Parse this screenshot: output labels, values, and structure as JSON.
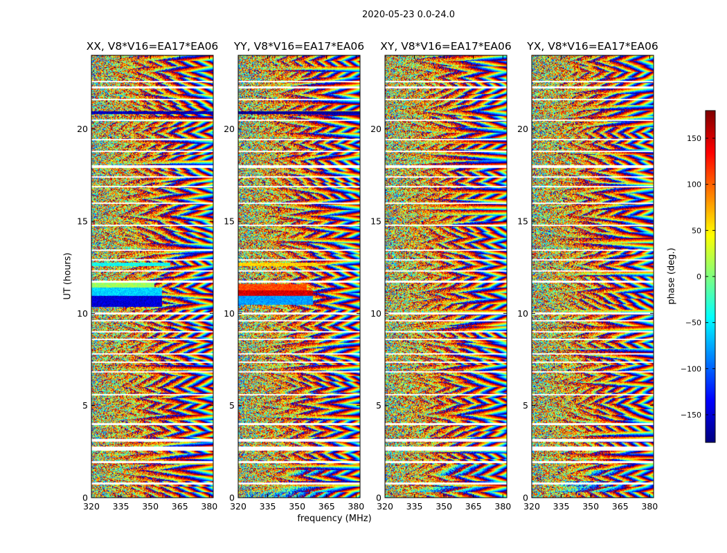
{
  "chart_data": [
    {
      "type": "heatmap",
      "title": "XX, V8*V16=EA17*EA06",
      "xlabel": "",
      "ylabel": "UT (hours)",
      "x_ticks": [
        "320",
        "335",
        "350",
        "365",
        "380"
      ],
      "y_ticks": [
        "0",
        "5",
        "10",
        "15",
        "20"
      ],
      "xlim": [
        320,
        382
      ],
      "ylim": [
        0,
        24
      ],
      "value": "phase (deg.)",
      "solid_bands": [
        {
          "ut": [
            10.35,
            10.95
          ],
          "from_mhz": 320,
          "to_mhz": 356,
          "phase": -150
        },
        {
          "ut": [
            10.95,
            11.4
          ],
          "from_mhz": 320,
          "to_mhz": 356,
          "phase": -60
        },
        {
          "ut": [
            11.4,
            11.65
          ],
          "from_mhz": 320,
          "to_mhz": 352,
          "phase": 10
        },
        {
          "ut": [
            20.8,
            20.95
          ],
          "from_mhz": 320,
          "to_mhz": 382,
          "phase": -160
        },
        {
          "ut": [
            12.55,
            12.75
          ],
          "from_mhz": 320,
          "to_mhz": 360,
          "phase": -40
        }
      ]
    },
    {
      "type": "heatmap",
      "title": "YY, V8*V16=EA17*EA06",
      "xlabel": "frequency (MHz)",
      "ylabel": "",
      "x_ticks": [
        "320",
        "335",
        "350",
        "365",
        "380"
      ],
      "y_ticks": [
        "0",
        "5",
        "10",
        "15",
        "20"
      ],
      "xlim": [
        320,
        382
      ],
      "ylim": [
        0,
        24
      ],
      "value": "phase (deg.)",
      "solid_bands": [
        {
          "ut": [
            10.45,
            10.95
          ],
          "from_mhz": 320,
          "to_mhz": 358,
          "phase": -80
        },
        {
          "ut": [
            10.95,
            11.25
          ],
          "from_mhz": 320,
          "to_mhz": 358,
          "phase": 150
        },
        {
          "ut": [
            11.25,
            11.6
          ],
          "from_mhz": 320,
          "to_mhz": 355,
          "phase": 110
        },
        {
          "ut": [
            12.55,
            12.75
          ],
          "from_mhz": 320,
          "to_mhz": 360,
          "phase": 60
        },
        {
          "ut": [
            20.8,
            20.95
          ],
          "from_mhz": 320,
          "to_mhz": 382,
          "phase": -170
        }
      ]
    },
    {
      "type": "heatmap",
      "title": "XY, V8*V16=EA17*EA06",
      "xlabel": "",
      "ylabel": "",
      "x_ticks": [
        "320",
        "335",
        "350",
        "365",
        "380"
      ],
      "y_ticks": [
        "0",
        "5",
        "10",
        "15",
        "20"
      ],
      "xlim": [
        320,
        382
      ],
      "ylim": [
        0,
        24
      ],
      "value": "phase (deg.)",
      "solid_bands": []
    },
    {
      "type": "heatmap",
      "title": "YX, V8*V16=EA17*EA06",
      "xlabel": "",
      "ylabel": "",
      "x_ticks": [
        "320",
        "335",
        "350",
        "365",
        "380"
      ],
      "y_ticks": [
        "0",
        "5",
        "10",
        "15",
        "20"
      ],
      "xlim": [
        320,
        382
      ],
      "ylim": [
        0,
        24
      ],
      "value": "phase (deg.)",
      "solid_bands": []
    }
  ],
  "suptitle": "2020-05-23 0.0-24.0",
  "colorbar": {
    "label": "phase (deg.)",
    "range": [
      -180,
      180
    ],
    "ticks": [
      150,
      100,
      50,
      0,
      -50,
      -100,
      -150
    ],
    "tick_labels": [
      "150",
      "100",
      "50",
      "0",
      "−50",
      "−100",
      "−150"
    ],
    "colormap": "jet"
  },
  "flagged_ut_gaps": [
    [
      0.72,
      0.82
    ],
    [
      1.88,
      1.98
    ],
    [
      2.55,
      2.78
    ],
    [
      3.05,
      3.2
    ],
    [
      3.95,
      4.05
    ],
    [
      5.55,
      5.62
    ],
    [
      6.8,
      6.86
    ],
    [
      7.32,
      7.38
    ],
    [
      7.78,
      7.84
    ],
    [
      8.55,
      8.62
    ],
    [
      8.98,
      9.04
    ],
    [
      9.55,
      9.62
    ],
    [
      9.95,
      10.05
    ],
    [
      11.65,
      11.78
    ],
    [
      12.25,
      12.33
    ],
    [
      12.85,
      12.95
    ],
    [
      13.4,
      13.47
    ],
    [
      14.75,
      14.82
    ],
    [
      15.95,
      16.02
    ],
    [
      16.85,
      16.93
    ],
    [
      17.35,
      17.42
    ],
    [
      17.9,
      18.05
    ],
    [
      18.75,
      18.83
    ],
    [
      19.38,
      19.45
    ],
    [
      20.45,
      20.52
    ],
    [
      21.55,
      21.63
    ],
    [
      22.2,
      22.3
    ],
    [
      22.55,
      22.62
    ]
  ],
  "colors": {
    "axis": "#000000",
    "background": "#ffffff"
  }
}
